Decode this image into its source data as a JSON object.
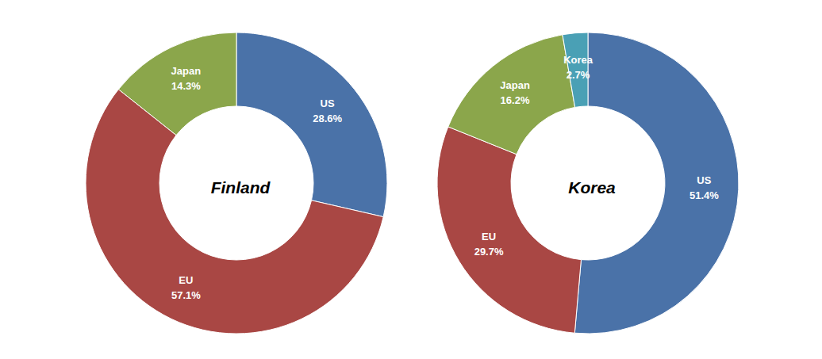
{
  "chart_data": [
    {
      "type": "pie",
      "title": "Finland",
      "categories": [
        "US",
        "EU",
        "Japan"
      ],
      "values": [
        28.6,
        57.1,
        14.3
      ],
      "value_labels": [
        "28.6%",
        "57.1%",
        "14.3%"
      ],
      "colors": [
        "#4a72a8",
        "#a94744",
        "#8ba64b"
      ],
      "data_labels": true
    },
    {
      "type": "pie",
      "title": "Korea",
      "categories": [
        "US",
        "EU",
        "Japan",
        "Korea"
      ],
      "values": [
        51.4,
        29.7,
        16.2,
        2.7
      ],
      "value_labels": [
        "51.4%",
        "29.7%",
        "16.2%",
        "2.7%"
      ],
      "colors": [
        "#4a72a8",
        "#a94744",
        "#8ba64b",
        "#4aa0b5"
      ],
      "data_labels": true
    }
  ]
}
